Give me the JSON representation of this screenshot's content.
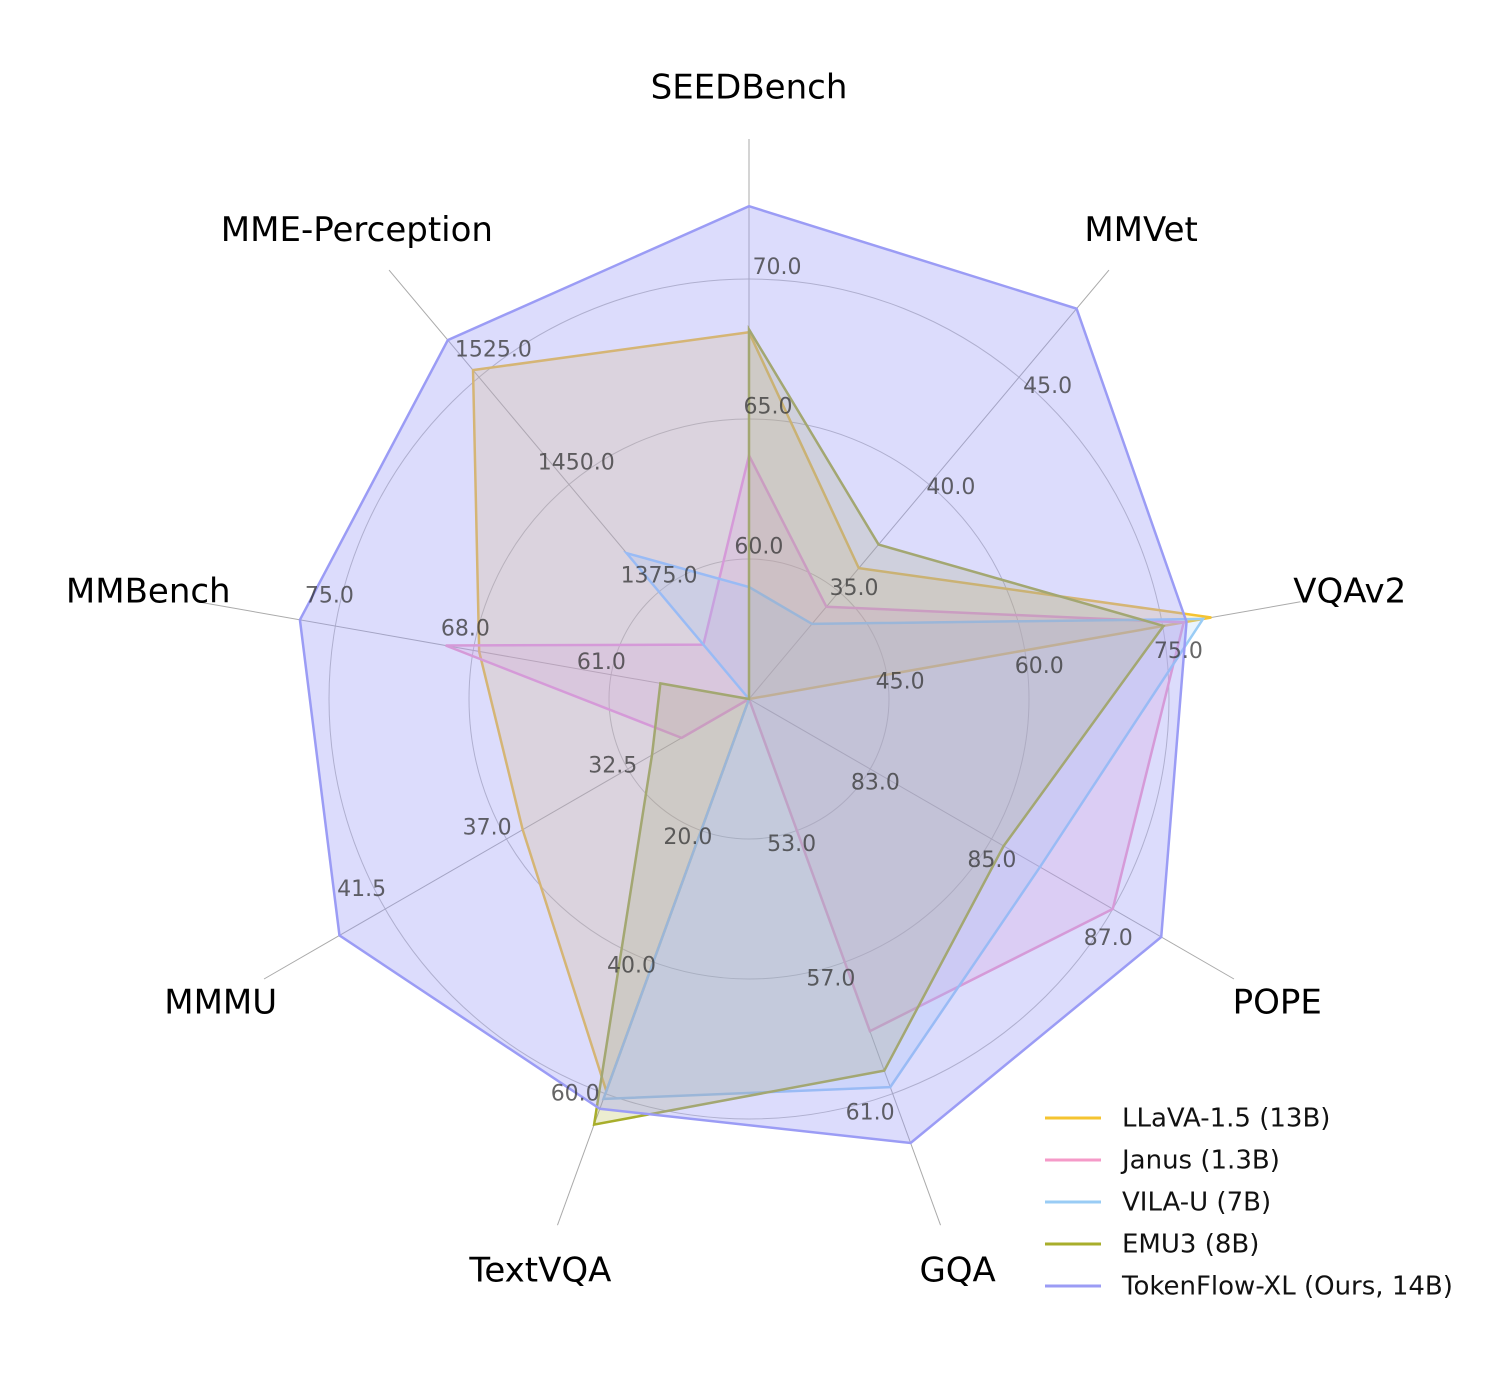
{
  "chart_data": {
    "type": "radar",
    "categories": [
      "SEEDBench",
      "MMVet",
      "VQAv2",
      "POPE",
      "GQA",
      "TextVQA",
      "MMMU",
      "MMBench",
      "MME-Perception"
    ],
    "axes": [
      {
        "ylim": [
          55,
          75
        ],
        "yticks": [
          {
            "value": 60,
            "label": "60.0"
          },
          {
            "value": 65,
            "label": "65.0"
          },
          {
            "value": 70,
            "label": "70.0"
          }
        ]
      },
      {
        "ylim": [
          30,
          50
        ],
        "yticks": [
          {
            "value": 35,
            "label": "35.0"
          },
          {
            "value": 40,
            "label": "40.0"
          },
          {
            "value": 45,
            "label": "45.0"
          }
        ]
      },
      {
        "ylim": [
          30,
          90
        ],
        "yticks": [
          {
            "value": 45,
            "label": "45.0"
          },
          {
            "value": 60,
            "label": "60.0"
          },
          {
            "value": 75,
            "label": "75.0"
          }
        ]
      },
      {
        "ylim": [
          81,
          89
        ],
        "yticks": [
          {
            "value": 83,
            "label": "83.0"
          },
          {
            "value": 85,
            "label": "85.0"
          },
          {
            "value": 87,
            "label": "87.0"
          }
        ]
      },
      {
        "ylim": [
          49,
          65
        ],
        "yticks": [
          {
            "value": 53,
            "label": "53.0"
          },
          {
            "value": 57,
            "label": "57.0"
          },
          {
            "value": 61,
            "label": "61.0"
          }
        ]
      },
      {
        "ylim": [
          0,
          80
        ],
        "yticks": [
          {
            "value": 20,
            "label": "20.0"
          },
          {
            "value": 40,
            "label": "40.0"
          },
          {
            "value": 60,
            "label": "60.0"
          }
        ]
      },
      {
        "ylim": [
          28,
          46
        ],
        "yticks": [
          {
            "value": 32.5,
            "label": "32.5"
          },
          {
            "value": 37,
            "label": "37.0"
          },
          {
            "value": 41.5,
            "label": "41.5"
          }
        ]
      },
      {
        "ylim": [
          54,
          82
        ],
        "yticks": [
          {
            "value": 61,
            "label": "61.0"
          },
          {
            "value": 68,
            "label": "68.0"
          },
          {
            "value": 75,
            "label": "75.0"
          }
        ]
      },
      {
        "ylim": [
          1300,
          1600
        ],
        "yticks": [
          {
            "value": 1375,
            "label": "1375.0"
          },
          {
            "value": 1450,
            "label": "1450.0"
          },
          {
            "value": 1525,
            "label": "1525.0"
          }
        ]
      }
    ],
    "series": [
      {
        "name": "LLaVA-1.5 (13B)",
        "color": "#f5c431",
        "values": [
          68.1,
          36.1,
          80.3,
          81,
          49,
          59.6,
          36.4,
          67.7,
          1530
        ]
      },
      {
        "name": "Janus (1.3B)",
        "color": "#f59ac8",
        "values": [
          63.7,
          34.3,
          77.3,
          87.0,
          59.1,
          0,
          30.5,
          69.4,
          1338
        ]
      },
      {
        "name": "VILA-U (7B)",
        "color": "#99ccf5",
        "values": [
          59.0,
          33.5,
          79.4,
          85.8,
          60.8,
          60.8,
          28,
          54,
          1402
        ]
      },
      {
        "name": "EMU3 (8B)",
        "color": "#a8ae2b",
        "values": [
          68.2,
          37.2,
          75.1,
          85.2,
          60.3,
          64.7,
          31.6,
          58.5,
          1300
        ]
      },
      {
        "name": "TokenFlow-XL (Ours, 14B)",
        "color": "#9b9cf5",
        "values": [
          72.6,
          48.2,
          77.6,
          87.8,
          62.5,
          62.3,
          43.2,
          76.8,
          1551
        ]
      }
    ],
    "legend": "lower right",
    "grid": true
  }
}
